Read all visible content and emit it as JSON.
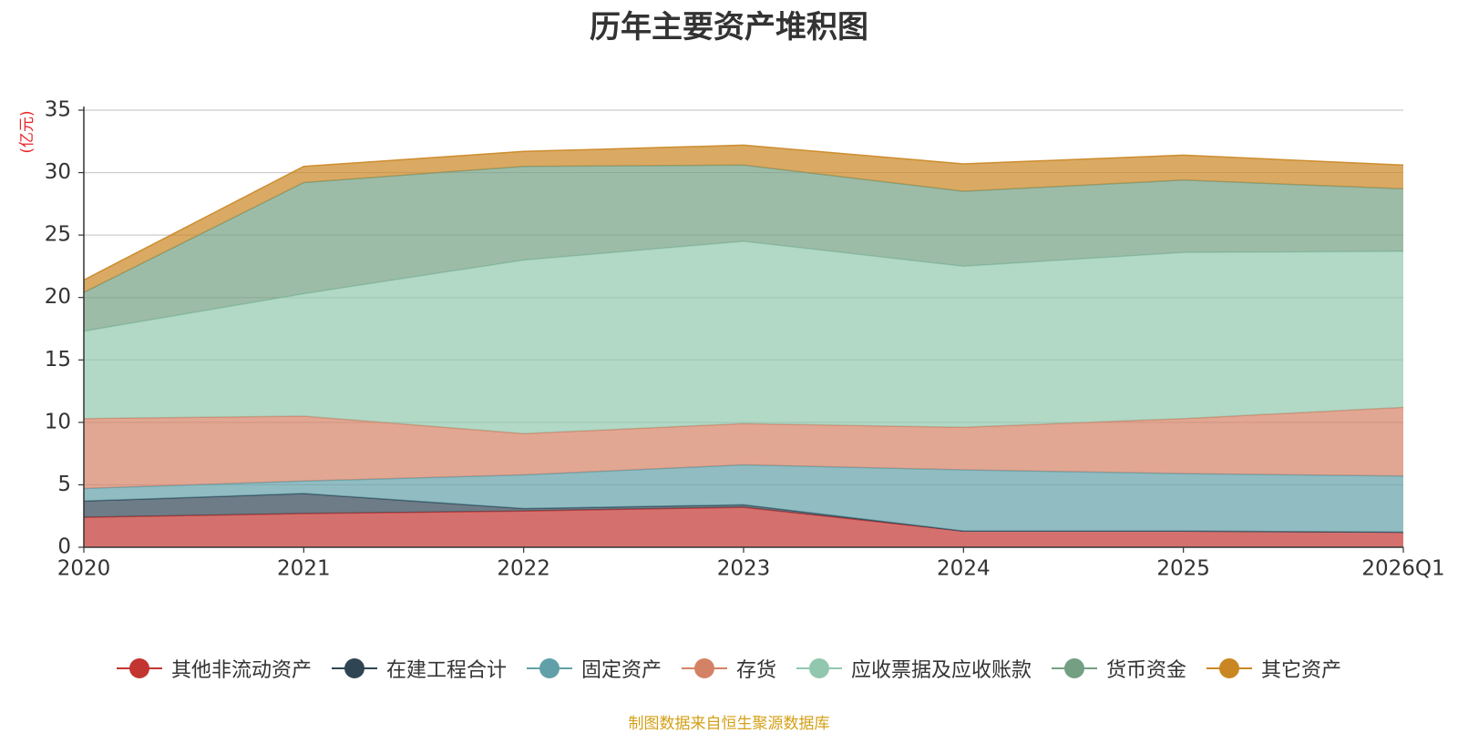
{
  "chart_data": {
    "type": "area",
    "title": "历年主要资产堆积图",
    "ylabel": "(亿元)",
    "xlabel": "",
    "categories": [
      "2020",
      "2021",
      "2022",
      "2023",
      "2024",
      "2025",
      "2026Q1"
    ],
    "ylim": [
      0,
      35
    ],
    "yticks": [
      0,
      5,
      10,
      15,
      20,
      25,
      30,
      35
    ],
    "stacked": true,
    "grid": true,
    "legend_position": "bottom",
    "series": [
      {
        "name": "其他非流动资产",
        "color": "#c23531",
        "values": [
          2.4,
          2.7,
          2.9,
          3.2,
          1.3,
          1.3,
          1.2
        ]
      },
      {
        "name": "在建工程合计",
        "color": "#2f4554",
        "values": [
          1.3,
          1.6,
          0.2,
          0.2,
          0.0,
          0.0,
          0.0
        ]
      },
      {
        "name": "固定资产",
        "color": "#61a0a8",
        "values": [
          1.0,
          1.0,
          2.7,
          3.2,
          4.9,
          4.6,
          4.5
        ]
      },
      {
        "name": "存货",
        "color": "#d48265",
        "values": [
          5.6,
          5.2,
          3.3,
          3.3,
          3.4,
          4.4,
          5.5
        ]
      },
      {
        "name": "应收票据及应收账款",
        "color": "#91c7ae",
        "values": [
          7.0,
          9.8,
          13.9,
          14.6,
          12.9,
          13.3,
          12.5
        ]
      },
      {
        "name": "货币资金",
        "color": "#749f83",
        "values": [
          3.1,
          8.9,
          7.5,
          6.1,
          6.0,
          5.8,
          5.0
        ]
      },
      {
        "name": "其它资产",
        "color": "#ca8622",
        "values": [
          1.0,
          1.3,
          1.2,
          1.6,
          2.2,
          2.0,
          1.9
        ]
      }
    ]
  },
  "source_note": "制图数据来自恒生聚源数据库"
}
